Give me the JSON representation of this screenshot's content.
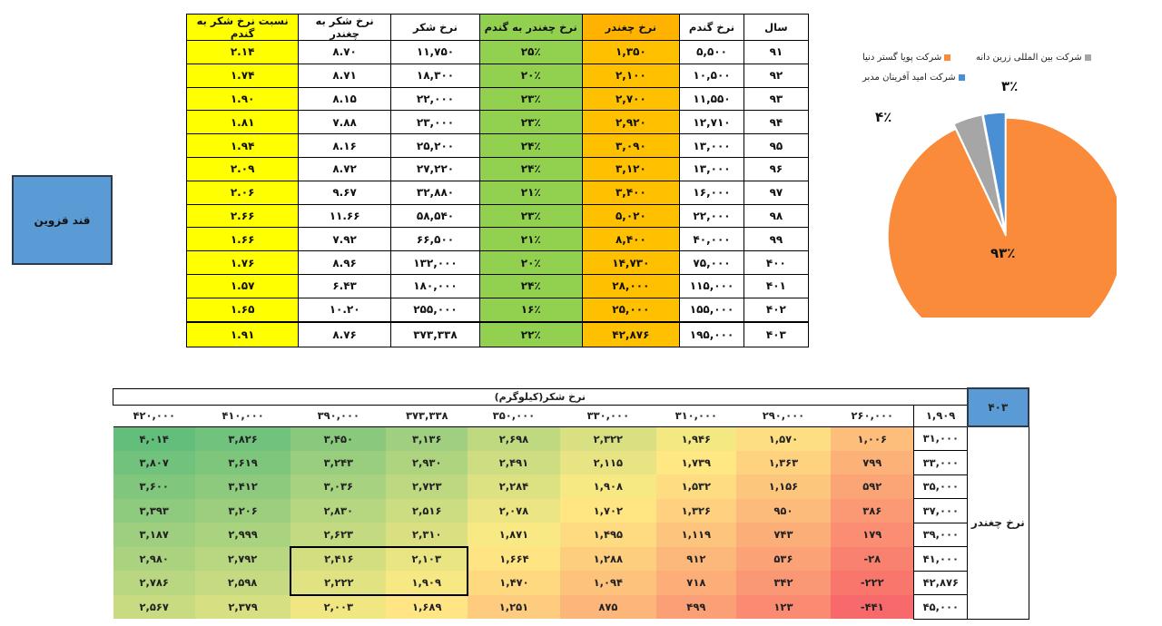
{
  "left_box": {
    "label": "قند قزوین"
  },
  "top_table": {
    "headers": [
      "نسبت نرخ شکر به گندم",
      "نرخ شکر به چغندر",
      "نرخ شکر",
      "نرخ چغندر به گندم",
      "نرخ چغندر",
      "نرخ گندم",
      "سال"
    ],
    "rows": [
      [
        "۲.۱۴",
        "۸.۷۰",
        "۱۱,۷۵۰",
        "۲۵٪",
        "۱,۳۵۰",
        "۵,۵۰۰",
        "۹۱"
      ],
      [
        "۱.۷۴",
        "۸.۷۱",
        "۱۸,۳۰۰",
        "۲۰٪",
        "۲,۱۰۰",
        "۱۰,۵۰۰",
        "۹۲"
      ],
      [
        "۱.۹۰",
        "۸.۱۵",
        "۲۲,۰۰۰",
        "۲۳٪",
        "۲,۷۰۰",
        "۱۱,۵۵۰",
        "۹۳"
      ],
      [
        "۱.۸۱",
        "۷.۸۸",
        "۲۳,۰۰۰",
        "۲۳٪",
        "۲,۹۲۰",
        "۱۲,۷۱۰",
        "۹۴"
      ],
      [
        "۱.۹۴",
        "۸.۱۶",
        "۲۵,۲۰۰",
        "۲۴٪",
        "۳,۰۹۰",
        "۱۳,۰۰۰",
        "۹۵"
      ],
      [
        "۲.۰۹",
        "۸.۷۲",
        "۲۷,۲۲۰",
        "۲۴٪",
        "۳,۱۲۰",
        "۱۳,۰۰۰",
        "۹۶"
      ],
      [
        "۲.۰۶",
        "۹.۶۷",
        "۳۲,۸۸۰",
        "۲۱٪",
        "۳,۴۰۰",
        "۱۶,۰۰۰",
        "۹۷"
      ],
      [
        "۲.۶۶",
        "۱۱.۶۶",
        "۵۸,۵۴۰",
        "۲۳٪",
        "۵,۰۲۰",
        "۲۲,۰۰۰",
        "۹۸"
      ],
      [
        "۱.۶۶",
        "۷.۹۲",
        "۶۶,۵۰۰",
        "۲۱٪",
        "۸,۴۰۰",
        "۴۰,۰۰۰",
        "۹۹"
      ],
      [
        "۱.۷۶",
        "۸.۹۶",
        "۱۳۲,۰۰۰",
        "۲۰٪",
        "۱۴,۷۳۰",
        "۷۵,۰۰۰",
        "۴۰۰"
      ],
      [
        "۱.۵۷",
        "۶.۴۳",
        "۱۸۰,۰۰۰",
        "۲۴٪",
        "۲۸,۰۰۰",
        "۱۱۵,۰۰۰",
        "۴۰۱"
      ],
      [
        "۱.۶۵",
        "۱۰.۲۰",
        "۲۵۵,۰۰۰",
        "۱۶٪",
        "۲۵,۰۰۰",
        "۱۵۵,۰۰۰",
        "۴۰۲"
      ],
      [
        "۱.۹۱",
        "۸.۷۶",
        "۳۷۳,۳۳۸",
        "۲۲٪",
        "۴۲,۸۷۶",
        "۱۹۵,۰۰۰",
        "۴۰۳"
      ]
    ]
  },
  "chart_data": {
    "type": "pie",
    "title": "",
    "legend_position": "top",
    "series": [
      {
        "name": "شرکت پویا گستر دنیا",
        "value": 93,
        "label": "۹۳٪",
        "color": "#f98b3a"
      },
      {
        "name": "شرکت بین المللی زرین دانه",
        "value": 4,
        "label": "۴٪",
        "color": "#a6a6a6"
      },
      {
        "name": "شرکت امید آفرینان مدبر",
        "value": 3,
        "label": "۳٪",
        "color": "#4a8fd4"
      }
    ]
  },
  "sensitivity_table": {
    "corner": "۴۰۳",
    "title": "نرخ شکر(کیلوگرم)",
    "side_label": "نرخ چغندر",
    "base_value": "۱,۹۰۹",
    "x_headers": [
      "۲۶۰,۰۰۰",
      "۲۹۰,۰۰۰",
      "۳۱۰,۰۰۰",
      "۳۳۰,۰۰۰",
      "۳۵۰,۰۰۰",
      "۳۷۳,۳۳۸",
      "۳۹۰,۰۰۰",
      "۴۱۰,۰۰۰",
      "۴۲۰,۰۰۰"
    ],
    "row_headers": [
      "۳۱,۰۰۰",
      "۳۳,۰۰۰",
      "۳۵,۰۰۰",
      "۳۷,۰۰۰",
      "۳۹,۰۰۰",
      "۴۱,۰۰۰",
      "۴۲,۸۷۶",
      "۴۵,۰۰۰"
    ],
    "values_display": [
      [
        "۱,۰۰۶",
        "۱,۵۷۰",
        "۱,۹۴۶",
        "۲,۳۲۲",
        "۲,۶۹۸",
        "۳,۱۳۶",
        "۳,۴۵۰",
        "۳,۸۲۶",
        "۴,۰۱۴"
      ],
      [
        "۷۹۹",
        "۱,۳۶۳",
        "۱,۷۳۹",
        "۲,۱۱۵",
        "۲,۴۹۱",
        "۲,۹۳۰",
        "۳,۲۴۳",
        "۳,۶۱۹",
        "۳,۸۰۷"
      ],
      [
        "۵۹۲",
        "۱,۱۵۶",
        "۱,۵۳۲",
        "۱,۹۰۸",
        "۲,۲۸۴",
        "۲,۷۲۳",
        "۳,۰۳۶",
        "۳,۴۱۲",
        "۳,۶۰۰"
      ],
      [
        "۳۸۶",
        "۹۵۰",
        "۱,۳۲۶",
        "۱,۷۰۲",
        "۲,۰۷۸",
        "۲,۵۱۶",
        "۲,۸۳۰",
        "۳,۲۰۶",
        "۳,۳۹۳"
      ],
      [
        "۱۷۹",
        "۷۴۳",
        "۱,۱۱۹",
        "۱,۴۹۵",
        "۱,۸۷۱",
        "۲,۳۱۰",
        "۲,۶۲۳",
        "۲,۹۹۹",
        "۳,۱۸۷"
      ],
      [
        "-۲۸",
        "۵۳۶",
        "۹۱۲",
        "۱,۲۸۸",
        "۱,۶۶۴",
        "۲,۱۰۳",
        "۲,۴۱۶",
        "۲,۷۹۲",
        "۲,۹۸۰"
      ],
      [
        "-۲۲۲",
        "۳۴۲",
        "۷۱۸",
        "۱,۰۹۴",
        "۱,۴۷۰",
        "۱,۹۰۹",
        "۲,۲۲۲",
        "۲,۵۹۸",
        "۲,۷۸۶"
      ],
      [
        "-۴۴۱",
        "۱۲۳",
        "۴۹۹",
        "۸۷۵",
        "۱,۲۵۱",
        "۱,۶۸۹",
        "۲,۰۰۳",
        "۲,۳۷۹",
        "۲,۵۶۷"
      ]
    ],
    "values": [
      [
        1006,
        1570,
        1946,
        2322,
        2698,
        3136,
        3450,
        3826,
        4014
      ],
      [
        799,
        1363,
        1739,
        2115,
        2491,
        2930,
        3243,
        3619,
        3807
      ],
      [
        592,
        1156,
        1532,
        1908,
        2284,
        2723,
        3036,
        3412,
        3600
      ],
      [
        386,
        950,
        1326,
        1702,
        2078,
        2516,
        2830,
        3206,
        3393
      ],
      [
        179,
        743,
        1119,
        1495,
        1871,
        2310,
        2623,
        2999,
        3187
      ],
      [
        -28,
        536,
        912,
        1288,
        1664,
        2103,
        2416,
        2792,
        2980
      ],
      [
        -222,
        342,
        718,
        1094,
        1470,
        1909,
        2222,
        2598,
        2786
      ],
      [
        -441,
        123,
        499,
        875,
        1251,
        1689,
        2003,
        2379,
        2567
      ]
    ]
  }
}
